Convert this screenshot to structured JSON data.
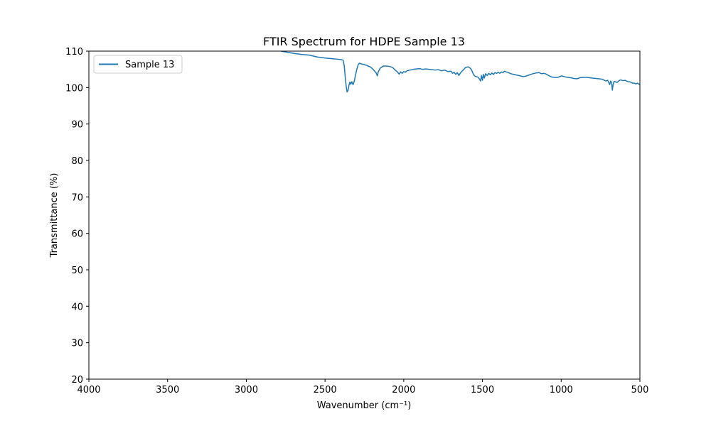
{
  "chart_data": {
    "type": "line",
    "title": "FTIR Spectrum for HDPE Sample 13",
    "xlabel": "Wavenumber (cm⁻¹)",
    "ylabel": "Transmittance (%)",
    "xlim": [
      4000,
      500
    ],
    "ylim": [
      20,
      110
    ],
    "x_ticks": [
      4000,
      3500,
      3000,
      2500,
      2000,
      1500,
      1000,
      500
    ],
    "y_ticks": [
      20,
      30,
      40,
      50,
      60,
      70,
      80,
      90,
      100,
      110
    ],
    "grid": false,
    "legend_position": "upper-left",
    "series": [
      {
        "name": "Sample 13",
        "color": "#1f77b4",
        "points": [
          [
            2780,
            110.0
          ],
          [
            2700,
            109.4
          ],
          [
            2650,
            109.1
          ],
          [
            2600,
            108.9
          ],
          [
            2550,
            108.4
          ],
          [
            2500,
            108.1
          ],
          [
            2450,
            107.9
          ],
          [
            2400,
            107.7
          ],
          [
            2385,
            107.5
          ],
          [
            2378,
            106.0
          ],
          [
            2372,
            103.0
          ],
          [
            2366,
            100.5
          ],
          [
            2360,
            98.8
          ],
          [
            2354,
            99.2
          ],
          [
            2348,
            100.6
          ],
          [
            2342,
            101.5
          ],
          [
            2336,
            100.9
          ],
          [
            2330,
            101.6
          ],
          [
            2322,
            100.8
          ],
          [
            2314,
            101.8
          ],
          [
            2306,
            103.5
          ],
          [
            2298,
            105.0
          ],
          [
            2290,
            106.2
          ],
          [
            2282,
            106.7
          ],
          [
            2270,
            106.5
          ],
          [
            2250,
            106.3
          ],
          [
            2230,
            106.0
          ],
          [
            2210,
            105.6
          ],
          [
            2195,
            105.0
          ],
          [
            2185,
            104.5
          ],
          [
            2175,
            104.0
          ],
          [
            2168,
            103.2
          ],
          [
            2162,
            104.3
          ],
          [
            2150,
            105.3
          ],
          [
            2130,
            105.9
          ],
          [
            2110,
            105.9
          ],
          [
            2090,
            105.8
          ],
          [
            2070,
            105.5
          ],
          [
            2055,
            104.8
          ],
          [
            2040,
            104.3
          ],
          [
            2030,
            103.7
          ],
          [
            2020,
            104.3
          ],
          [
            2010,
            103.9
          ],
          [
            2000,
            104.4
          ],
          [
            1990,
            104.2
          ],
          [
            1980,
            104.6
          ],
          [
            1960,
            104.8
          ],
          [
            1940,
            105.0
          ],
          [
            1920,
            105.1
          ],
          [
            1900,
            105.2
          ],
          [
            1880,
            105.0
          ],
          [
            1860,
            105.1
          ],
          [
            1840,
            105.0
          ],
          [
            1820,
            104.9
          ],
          [
            1800,
            104.8
          ],
          [
            1780,
            104.9
          ],
          [
            1760,
            104.6
          ],
          [
            1740,
            104.8
          ],
          [
            1720,
            104.4
          ],
          [
            1700,
            104.5
          ],
          [
            1690,
            103.9
          ],
          [
            1680,
            104.2
          ],
          [
            1670,
            103.6
          ],
          [
            1660,
            104.1
          ],
          [
            1650,
            103.3
          ],
          [
            1640,
            104.0
          ],
          [
            1630,
            104.5
          ],
          [
            1620,
            104.9
          ],
          [
            1610,
            105.4
          ],
          [
            1600,
            105.6
          ],
          [
            1590,
            105.7
          ],
          [
            1580,
            105.4
          ],
          [
            1570,
            104.9
          ],
          [
            1560,
            103.9
          ],
          [
            1550,
            103.2
          ],
          [
            1540,
            103.0
          ],
          [
            1530,
            102.9
          ],
          [
            1520,
            102.4
          ],
          [
            1512,
            101.8
          ],
          [
            1506,
            103.3
          ],
          [
            1500,
            102.0
          ],
          [
            1494,
            103.6
          ],
          [
            1488,
            102.6
          ],
          [
            1480,
            103.8
          ],
          [
            1470,
            103.3
          ],
          [
            1460,
            103.9
          ],
          [
            1450,
            103.5
          ],
          [
            1440,
            104.0
          ],
          [
            1430,
            103.6
          ],
          [
            1420,
            104.1
          ],
          [
            1410,
            103.9
          ],
          [
            1400,
            104.2
          ],
          [
            1390,
            103.9
          ],
          [
            1380,
            104.3
          ],
          [
            1370,
            104.1
          ],
          [
            1360,
            104.5
          ],
          [
            1350,
            104.3
          ],
          [
            1340,
            104.2
          ],
          [
            1320,
            103.8
          ],
          [
            1300,
            103.6
          ],
          [
            1280,
            103.4
          ],
          [
            1260,
            103.2
          ],
          [
            1240,
            103.0
          ],
          [
            1220,
            103.2
          ],
          [
            1200,
            103.5
          ],
          [
            1180,
            103.8
          ],
          [
            1160,
            104.0
          ],
          [
            1140,
            104.1
          ],
          [
            1125,
            103.8
          ],
          [
            1110,
            103.9
          ],
          [
            1095,
            103.7
          ],
          [
            1080,
            103.3
          ],
          [
            1060,
            102.9
          ],
          [
            1040,
            102.8
          ],
          [
            1020,
            102.8
          ],
          [
            1005,
            103.1
          ],
          [
            995,
            103.2
          ],
          [
            980,
            103.0
          ],
          [
            960,
            102.8
          ],
          [
            940,
            102.7
          ],
          [
            920,
            102.5
          ],
          [
            900,
            102.4
          ],
          [
            880,
            102.7
          ],
          [
            860,
            102.8
          ],
          [
            840,
            102.8
          ],
          [
            820,
            102.7
          ],
          [
            800,
            102.6
          ],
          [
            780,
            102.5
          ],
          [
            760,
            102.4
          ],
          [
            740,
            102.3
          ],
          [
            725,
            102.0
          ],
          [
            715,
            101.8
          ],
          [
            705,
            102.0
          ],
          [
            698,
            101.4
          ],
          [
            692,
            100.8
          ],
          [
            686,
            101.8
          ],
          [
            680,
            101.4
          ],
          [
            675,
            99.3
          ],
          [
            670,
            100.9
          ],
          [
            664,
            101.7
          ],
          [
            655,
            101.6
          ],
          [
            645,
            101.4
          ],
          [
            635,
            101.8
          ],
          [
            625,
            102.1
          ],
          [
            615,
            102.0
          ],
          [
            605,
            101.9
          ],
          [
            595,
            102.0
          ],
          [
            585,
            101.8
          ],
          [
            575,
            101.6
          ],
          [
            565,
            101.6
          ],
          [
            555,
            101.4
          ],
          [
            545,
            101.2
          ],
          [
            535,
            101.2
          ],
          [
            525,
            101.0
          ],
          [
            515,
            101.2
          ],
          [
            505,
            100.9
          ],
          [
            500,
            101.0
          ]
        ]
      }
    ]
  }
}
